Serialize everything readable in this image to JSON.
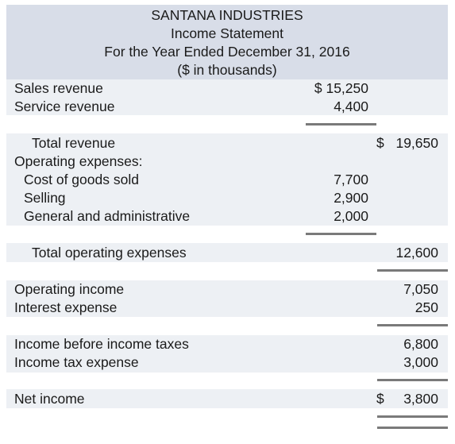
{
  "header": {
    "company": "SANTANA INDUSTRIES",
    "statement": "Income Statement",
    "period": "For the Year Ended December 31, 2016",
    "units": "($ in thousands)"
  },
  "revenues": [
    {
      "label": "Sales revenue",
      "amount": "$ 15,250"
    },
    {
      "label": "Service revenue",
      "amount": "4,400"
    }
  ],
  "total_revenue": {
    "label": "Total revenue",
    "dollar": "$",
    "amount": "19,650"
  },
  "operating_expenses": {
    "heading": "Operating expenses:",
    "items": [
      {
        "label": "Cost of goods sold",
        "amount": "7,700"
      },
      {
        "label": "Selling",
        "amount": "2,900"
      },
      {
        "label": "General and administrative",
        "amount": "2,000"
      }
    ]
  },
  "total_operating_expenses": {
    "label": "Total operating expenses",
    "amount": "12,600"
  },
  "operating_income": {
    "label": "Operating income",
    "amount": "7,050"
  },
  "interest_expense": {
    "label": "Interest expense",
    "amount": "250"
  },
  "income_before_taxes": {
    "label": "Income before income taxes",
    "amount": "6,800"
  },
  "income_tax_expense": {
    "label": "Income tax expense",
    "amount": "3,000"
  },
  "net_income": {
    "label": "Net income",
    "dollar": "$",
    "amount": "3,800"
  }
}
